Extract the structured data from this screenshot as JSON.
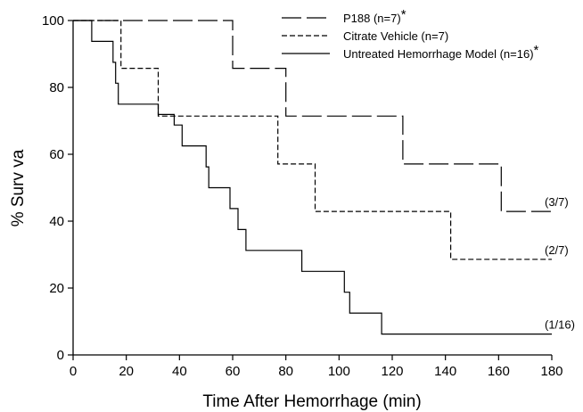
{
  "chart_data": {
    "type": "line",
    "title": "",
    "xlabel": "Time After Hemorrhage (min)",
    "ylabel": "% Surv va",
    "xlim": [
      0,
      180
    ],
    "ylim": [
      0,
      100
    ],
    "xticks": [
      0,
      20,
      40,
      60,
      80,
      100,
      120,
      140,
      160,
      180
    ],
    "yticks": [
      0,
      20,
      40,
      60,
      80,
      100
    ],
    "grid": false,
    "legend_position": "top-right",
    "series": [
      {
        "name": "P188 (n=7)",
        "marker": "*",
        "dash": "long-dash",
        "end_label": "(3/7)",
        "points": [
          [
            0,
            100
          ],
          [
            60,
            100
          ],
          [
            60,
            85.7
          ],
          [
            80,
            85.7
          ],
          [
            80,
            71.4
          ],
          [
            124,
            71.4
          ],
          [
            124,
            57.1
          ],
          [
            161,
            57.1
          ],
          [
            161,
            42.9
          ],
          [
            180,
            42.9
          ]
        ]
      },
      {
        "name": "Citrate Vehicle (n=7)",
        "marker": "",
        "dash": "short-dash",
        "end_label": "(2/7)",
        "points": [
          [
            0,
            100
          ],
          [
            18,
            100
          ],
          [
            18,
            85.7
          ],
          [
            32,
            85.7
          ],
          [
            32,
            71.4
          ],
          [
            77,
            71.4
          ],
          [
            77,
            57.1
          ],
          [
            91,
            57.1
          ],
          [
            91,
            42.9
          ],
          [
            142,
            42.9
          ],
          [
            142,
            28.6
          ],
          [
            180,
            28.6
          ]
        ]
      },
      {
        "name": "Untreated Hemorrhage Model (n=16)",
        "marker": "*",
        "dash": "solid",
        "end_label": "(1/16)",
        "points": [
          [
            0,
            100
          ],
          [
            7,
            100
          ],
          [
            7,
            93.75
          ],
          [
            15,
            93.75
          ],
          [
            15,
            87.5
          ],
          [
            16,
            87.5
          ],
          [
            16,
            81.25
          ],
          [
            17,
            81.25
          ],
          [
            17,
            75
          ],
          [
            32,
            75
          ],
          [
            32,
            71.9
          ],
          [
            38,
            71.9
          ],
          [
            38,
            68.75
          ],
          [
            41,
            68.75
          ],
          [
            41,
            62.5
          ],
          [
            50,
            62.5
          ],
          [
            50,
            56.25
          ],
          [
            51,
            56.25
          ],
          [
            51,
            50
          ],
          [
            59,
            50
          ],
          [
            59,
            43.75
          ],
          [
            62,
            43.75
          ],
          [
            62,
            37.5
          ],
          [
            65,
            37.5
          ],
          [
            65,
            31.25
          ],
          [
            86,
            31.25
          ],
          [
            86,
            25
          ],
          [
            102,
            25
          ],
          [
            102,
            18.75
          ],
          [
            104,
            18.75
          ],
          [
            104,
            12.5
          ],
          [
            116,
            12.5
          ],
          [
            116,
            6.25
          ],
          [
            180,
            6.25
          ]
        ]
      }
    ]
  }
}
